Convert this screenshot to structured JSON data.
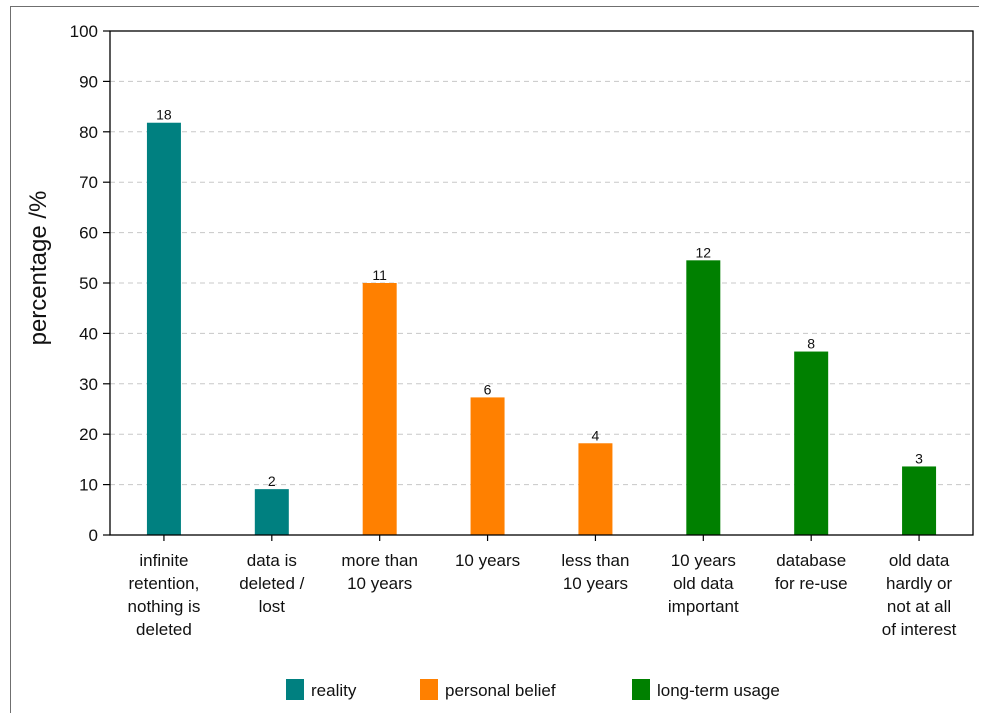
{
  "chart_data": {
    "type": "bar",
    "title": "",
    "xlabel": "",
    "ylabel": "percentage  /%",
    "ylim": [
      0,
      100
    ],
    "yticks": [
      0,
      10,
      20,
      30,
      40,
      50,
      60,
      70,
      80,
      90,
      100
    ],
    "grid": "horizontal dashed",
    "legend_position": "bottom",
    "categories": [
      [
        "infinite",
        "retention,",
        "nothing is",
        "deleted"
      ],
      [
        "data is",
        "deleted /",
        "lost"
      ],
      [
        "more than",
        "10 years"
      ],
      [
        "10 years"
      ],
      [
        "less than",
        "10 years"
      ],
      [
        "10 years",
        "old data",
        "important"
      ],
      [
        "database",
        "for re-use"
      ],
      [
        "old data",
        "hardly or",
        "not at all",
        "of interest"
      ]
    ],
    "values": [
      81.8,
      9.1,
      50.0,
      27.3,
      18.2,
      54.5,
      36.4,
      13.6
    ],
    "data_labels": [
      "18",
      "2",
      "11",
      "6",
      "4",
      "12",
      "8",
      "3"
    ],
    "bar_groups": [
      "reality",
      "reality",
      "personal belief",
      "personal belief",
      "personal belief",
      "long-term usage",
      "long-term usage",
      "long-term usage"
    ],
    "legend": [
      {
        "name": "reality",
        "color": "#008080"
      },
      {
        "name": "personal belief",
        "color": "#ff8000"
      },
      {
        "name": "long-term usage",
        "color": "#008000"
      }
    ]
  }
}
